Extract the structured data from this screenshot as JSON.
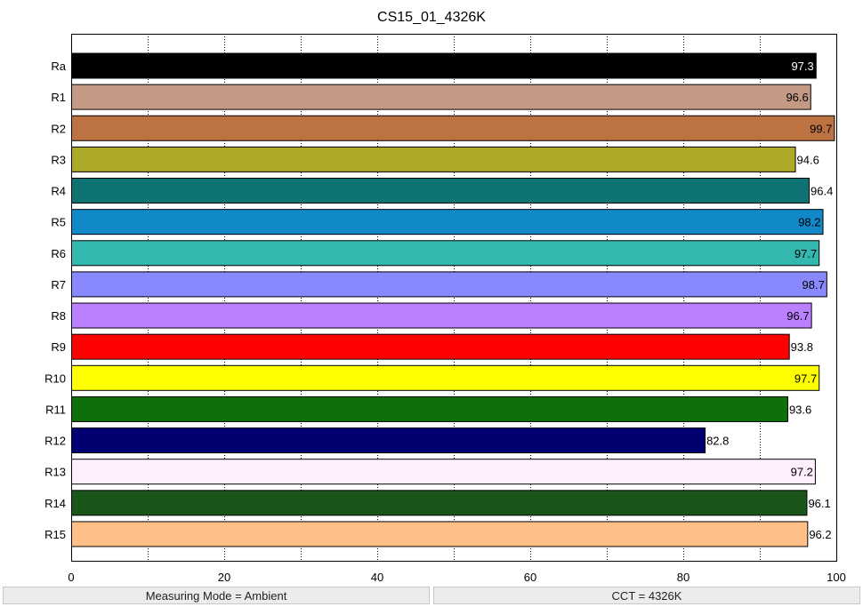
{
  "chart_data": {
    "type": "bar",
    "orientation": "horizontal",
    "title": "CS15_01_4326K",
    "xlabel": "",
    "ylabel": "",
    "xlim": [
      0,
      100
    ],
    "xticks": [
      0,
      20,
      40,
      60,
      80,
      100
    ],
    "grid": "vertical dotted",
    "categories": [
      "Ra",
      "R1",
      "R2",
      "R3",
      "R4",
      "R5",
      "R6",
      "R7",
      "R8",
      "R9",
      "R10",
      "R11",
      "R12",
      "R13",
      "R14",
      "R15"
    ],
    "values": [
      97.3,
      96.6,
      99.7,
      94.6,
      96.4,
      98.2,
      97.7,
      98.7,
      96.7,
      93.8,
      97.7,
      93.6,
      82.8,
      97.2,
      96.1,
      96.2
    ],
    "labels": [
      "97.3",
      "96.6",
      "99.7",
      "94.6",
      "96.4",
      "98.2",
      "97.7",
      "98.7",
      "96.7",
      "93.8",
      "97.7",
      "93.6",
      "82.8",
      "97.2",
      "96.1",
      "96.2"
    ],
    "colors": [
      "#000000",
      "#c49a85",
      "#bd7242",
      "#adaa2a",
      "#0f7272",
      "#1188c8",
      "#33b8b0",
      "#8888ff",
      "#bb80ff",
      "#ff0000",
      "#ffff00",
      "#0f700a",
      "#000070",
      "#ffeefc",
      "#1a561a",
      "#ffc088"
    ],
    "label_colors": [
      "#ffffff",
      "#000000",
      "#000000",
      "#000000",
      "#000000",
      "#000000",
      "#000000",
      "#000000",
      "#000000",
      "#000000",
      "#000000",
      "#000000",
      "#000000",
      "#000000",
      "#000000",
      "#000000"
    ]
  },
  "status": {
    "measuring_mode": "Measuring Mode = Ambient",
    "cct": "CCT = 4326K"
  }
}
